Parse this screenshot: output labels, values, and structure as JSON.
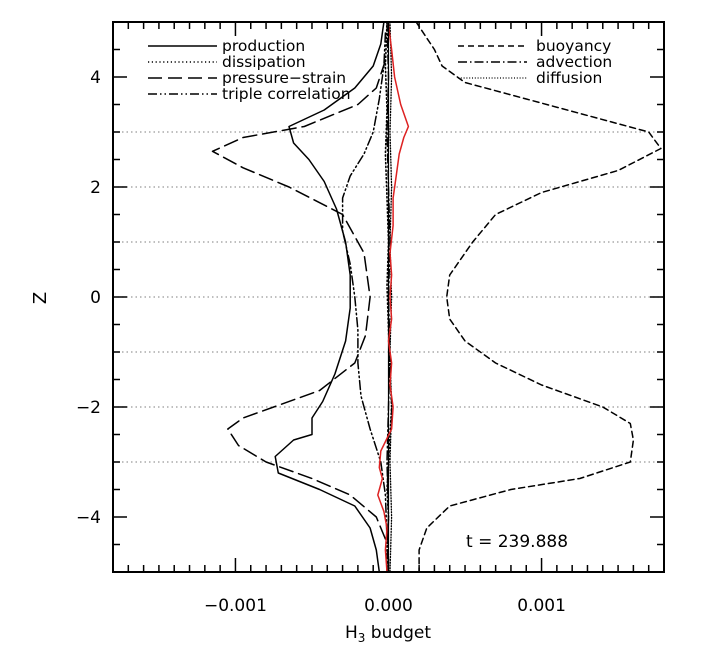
{
  "chart_data": {
    "type": "line",
    "xlabel_main": "H",
    "xlabel_sub": "3",
    "xlabel_rest": " budget",
    "ylabel": "Z",
    "annotation": "t = 239.888",
    "xlim": [
      -0.0018,
      0.0018
    ],
    "ylim": [
      -5,
      5
    ],
    "xticks": [
      {
        "value": -0.001,
        "label": "−0.001"
      },
      {
        "value": 0.0,
        "label": "0.000"
      },
      {
        "value": 0.001,
        "label": "0.001"
      }
    ],
    "yticks": [
      {
        "value": -4,
        "label": "−4"
      },
      {
        "value": -2,
        "label": "−2"
      },
      {
        "value": 0,
        "label": "0"
      },
      {
        "value": 2,
        "label": "2"
      },
      {
        "value": 4,
        "label": "4"
      }
    ],
    "grid": "dotted horizontal lines at z = -3, -2, -1, 0, 1, 2, 3",
    "grid_y": [
      -3,
      -2,
      -1,
      0,
      1,
      2,
      3
    ],
    "legend": [
      {
        "label": "production",
        "style": "solid",
        "column": "left"
      },
      {
        "label": "dissipation",
        "style": "dotted",
        "column": "left"
      },
      {
        "label": "pressure−strain",
        "style": "long-dash",
        "column": "left"
      },
      {
        "label": "triple correlation",
        "style": "dash-dot-dot",
        "column": "left"
      },
      {
        "label": "buoyancy",
        "style": "dashed",
        "column": "right"
      },
      {
        "label": "advection",
        "style": "dash-dot",
        "column": "right"
      },
      {
        "label": "diffusion",
        "style": "fine-dotted",
        "column": "right"
      }
    ],
    "series": [
      {
        "name": "production",
        "style": "solid",
        "color": "#000000",
        "points": [
          [
            -3e-05,
            5
          ],
          [
            -5e-05,
            4.6
          ],
          [
            -0.0001,
            4.2
          ],
          [
            -0.00022,
            3.8
          ],
          [
            -0.00042,
            3.4
          ],
          [
            -0.00065,
            3.1
          ],
          [
            -0.00062,
            2.8
          ],
          [
            -0.00052,
            2.5
          ],
          [
            -0.00042,
            2.1
          ],
          [
            -0.00034,
            1.6
          ],
          [
            -0.00028,
            1.0
          ],
          [
            -0.00025,
            0.4
          ],
          [
            -0.00025,
            -0.2
          ],
          [
            -0.00028,
            -0.8
          ],
          [
            -0.00035,
            -1.4
          ],
          [
            -0.00043,
            -1.9
          ],
          [
            -0.0005,
            -2.2
          ],
          [
            -0.0005,
            -2.5
          ],
          [
            -0.00062,
            -2.6
          ],
          [
            -0.00074,
            -2.9
          ],
          [
            -0.00072,
            -3.2
          ],
          [
            -0.00045,
            -3.5
          ],
          [
            -0.00022,
            -3.8
          ],
          [
            -0.00012,
            -4.2
          ],
          [
            -8e-05,
            -4.6
          ],
          [
            -6e-05,
            -5
          ]
        ]
      },
      {
        "name": "dissipation",
        "style": "dotted",
        "color": "#000000",
        "points": [
          [
            -1e-05,
            5
          ],
          [
            -2e-05,
            4.2
          ],
          [
            -1e-05,
            3.4
          ],
          [
            -2e-05,
            2.6
          ],
          [
            -1e-05,
            1.8
          ],
          [
            0.0,
            1.0
          ],
          [
            -1e-05,
            0.2
          ],
          [
            0.0,
            -0.6
          ],
          [
            1e-05,
            -1.4
          ],
          [
            2e-05,
            -2.0
          ],
          [
            1e-05,
            -2.5
          ],
          [
            0.0,
            -3.0
          ],
          [
            -1e-05,
            -3.5
          ],
          [
            0.0,
            -4.0
          ],
          [
            -1e-05,
            -4.6
          ],
          [
            -1e-05,
            -5
          ]
        ]
      },
      {
        "name": "pressure−strain",
        "style": "long-dash",
        "color": "#000000",
        "points": [
          [
            -2e-05,
            4.3
          ],
          [
            -8e-05,
            3.8
          ],
          [
            -0.0002,
            3.5
          ],
          [
            -0.00055,
            3.1
          ],
          [
            -0.00095,
            2.9
          ],
          [
            -0.00115,
            2.65
          ],
          [
            -0.00095,
            2.35
          ],
          [
            -0.00065,
            2.0
          ],
          [
            -0.0003,
            1.5
          ],
          [
            -0.00016,
            0.8
          ],
          [
            -0.00012,
            0.0
          ],
          [
            -0.00015,
            -0.7
          ],
          [
            -0.00022,
            -1.2
          ],
          [
            -0.00045,
            -1.7
          ],
          [
            -0.00075,
            -2.0
          ],
          [
            -0.00095,
            -2.2
          ],
          [
            -0.00105,
            -2.4
          ],
          [
            -0.00098,
            -2.7
          ],
          [
            -0.0008,
            -3.0
          ],
          [
            -0.0005,
            -3.3
          ],
          [
            -0.00025,
            -3.6
          ],
          [
            -8e-05,
            -4.0
          ],
          [
            -2e-05,
            -4.4
          ]
        ]
      },
      {
        "name": "triple correlation",
        "style": "dash-dot-dot",
        "color": "#000000",
        "points": [
          [
            -2e-05,
            4.8
          ],
          [
            -3e-05,
            4.2
          ],
          [
            -6e-05,
            3.6
          ],
          [
            -0.0001,
            3.0
          ],
          [
            -0.00016,
            2.6
          ],
          [
            -0.00025,
            2.2
          ],
          [
            -0.0003,
            1.8
          ],
          [
            -0.0003,
            1.2
          ],
          [
            -0.00025,
            0.6
          ],
          [
            -0.00022,
            0.0
          ],
          [
            -0.0002,
            -0.6
          ],
          [
            -0.0002,
            -1.2
          ],
          [
            -0.00018,
            -1.8
          ],
          [
            -0.00012,
            -2.4
          ],
          [
            -5e-05,
            -3.0
          ],
          [
            -2e-05,
            -3.6
          ],
          [
            -1e-05,
            -4.4
          ]
        ]
      },
      {
        "name": "buoyancy",
        "style": "dashed",
        "color": "#000000",
        "points": [
          [
            0.00018,
            5
          ],
          [
            0.0003,
            4.5
          ],
          [
            0.00035,
            4.2
          ],
          [
            0.0005,
            3.9
          ],
          [
            0.0009,
            3.6
          ],
          [
            0.0013,
            3.3
          ],
          [
            0.0017,
            3.0
          ],
          [
            0.00178,
            2.7
          ],
          [
            0.0015,
            2.3
          ],
          [
            0.001,
            1.9
          ],
          [
            0.0007,
            1.5
          ],
          [
            0.00055,
            1.0
          ],
          [
            0.0004,
            0.4
          ],
          [
            0.00038,
            0.0
          ],
          [
            0.0004,
            -0.4
          ],
          [
            0.0005,
            -0.8
          ],
          [
            0.0007,
            -1.2
          ],
          [
            0.001,
            -1.6
          ],
          [
            0.0014,
            -2.0
          ],
          [
            0.00158,
            -2.3
          ],
          [
            0.0016,
            -2.6
          ],
          [
            0.00158,
            -3.0
          ],
          [
            0.00125,
            -3.3
          ],
          [
            0.0008,
            -3.5
          ],
          [
            0.0004,
            -3.8
          ],
          [
            0.00025,
            -4.2
          ],
          [
            0.0002,
            -4.6
          ],
          [
            0.0002,
            -5
          ]
        ]
      },
      {
        "name": "advection",
        "style": "dash-dot",
        "color": "#000000",
        "points": [
          [
            -1e-05,
            5
          ],
          [
            0.0,
            4.0
          ],
          [
            -1e-05,
            3.0
          ],
          [
            0.0,
            2.0
          ],
          [
            1e-05,
            1.0
          ],
          [
            0.0,
            0.0
          ],
          [
            1e-05,
            -1.0
          ],
          [
            0.0,
            -2.0
          ],
          [
            -1e-05,
            -3.0
          ],
          [
            0.0,
            -4.0
          ],
          [
            -1e-05,
            -5
          ]
        ]
      },
      {
        "name": "diffusion",
        "style": "fine-dotted",
        "color": "#000000",
        "points": [
          [
            1e-05,
            5
          ],
          [
            2e-05,
            4.0
          ],
          [
            1e-05,
            3.0
          ],
          [
            2e-05,
            2.0
          ],
          [
            1e-05,
            1.0
          ],
          [
            2e-05,
            0.0
          ],
          [
            1e-05,
            -1.0
          ],
          [
            2e-05,
            -2.0
          ],
          [
            1e-05,
            -3.0
          ],
          [
            2e-05,
            -4.0
          ],
          [
            1e-05,
            -5
          ]
        ]
      },
      {
        "name": "",
        "style": "solid",
        "color": "#dd2222",
        "points": [
          [
            0.0,
            4.95
          ],
          [
            2e-05,
            4.5
          ],
          [
            4e-05,
            4.0
          ],
          [
            8e-05,
            3.5
          ],
          [
            0.00013,
            3.1
          ],
          [
            0.0001,
            2.9
          ],
          [
            7e-05,
            2.6
          ],
          [
            5e-05,
            2.2
          ],
          [
            3e-05,
            1.8
          ],
          [
            3e-05,
            1.3
          ],
          [
            1e-05,
            0.8
          ],
          [
            2e-05,
            0.4
          ],
          [
            1e-05,
            0.0
          ],
          [
            2e-05,
            -0.4
          ],
          [
            0.0,
            -0.8
          ],
          [
            2e-05,
            -1.2
          ],
          [
            1e-05,
            -1.6
          ],
          [
            3e-05,
            -2.0
          ],
          [
            2e-05,
            -2.4
          ],
          [
            -5e-05,
            -2.8
          ],
          [
            -6e-05,
            -3.1
          ],
          [
            -4e-05,
            -3.3
          ],
          [
            -7e-05,
            -3.6
          ],
          [
            -3e-05,
            -3.9
          ],
          [
            -1e-05,
            -4.2
          ],
          [
            -2e-05,
            -4.6
          ],
          [
            -1e-05,
            -5
          ]
        ]
      }
    ]
  }
}
